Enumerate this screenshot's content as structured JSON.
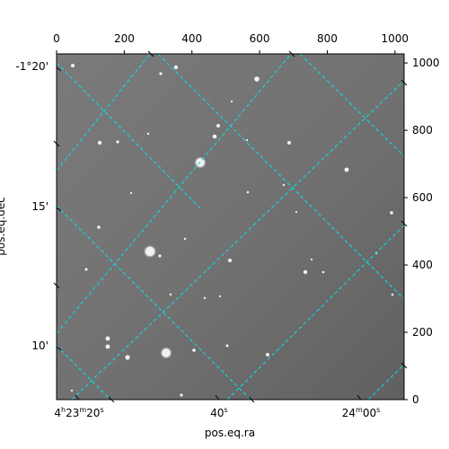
{
  "figure": {
    "xlabel": "pos.eq.ra",
    "ylabel": "pos.eq.dec",
    "colors": {
      "grid": "#00e5ee",
      "frame": "#000000",
      "background": "#ffffff"
    }
  },
  "pixel_axes": {
    "top_ticks": [
      "0",
      "200",
      "400",
      "600",
      "800",
      "1000"
    ],
    "right_ticks": [
      "0",
      "200",
      "400",
      "600",
      "800",
      "1000"
    ]
  },
  "world_axes": {
    "ra_ticks": [
      {
        "h": "4",
        "hu": "h",
        "m": "23",
        "mu": "m",
        "s": "20",
        "su": "s"
      },
      {
        "h": "",
        "hu": "",
        "m": "",
        "mu": "",
        "s": "40",
        "su": "s"
      },
      {
        "h": "",
        "hu": "",
        "m": "24",
        "mu": "m",
        "s": "00",
        "su": "s"
      }
    ],
    "dec_ticks": [
      "-1°20'",
      "15'",
      "10'"
    ]
  }
}
